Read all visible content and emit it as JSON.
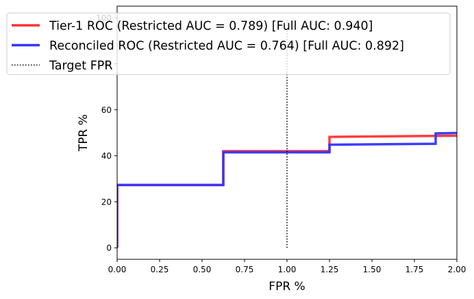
{
  "chart_data": {
    "type": "line",
    "xlabel": "FPR %",
    "ylabel": "TPR %",
    "xlim": [
      0,
      2
    ],
    "ylim": [
      -5,
      105
    ],
    "xticks": [
      "0.00",
      "0.25",
      "0.50",
      "0.75",
      "1.00",
      "1.25",
      "1.50",
      "1.75",
      "2.00"
    ],
    "yticks": [
      "0",
      "20",
      "40",
      "60",
      "80",
      "100"
    ],
    "grid": false,
    "legend_position": "top",
    "series": [
      {
        "name": "Tier-1 ROC (Restricted AUC = 0.789) [Full AUC: 0.940]",
        "color": "#ff3333",
        "x": [
          0,
          0,
          0.625,
          0.625,
          1.25,
          1.25,
          2.0
        ],
        "y": [
          0,
          27.3,
          27.3,
          42.0,
          42.0,
          48.2,
          48.7
        ]
      },
      {
        "name": "Reconciled ROC (Restricted AUC = 0.764) [Full AUC: 0.892]",
        "color": "#3333ff",
        "x": [
          0,
          0,
          0.625,
          0.625,
          1.25,
          1.25,
          1.875,
          1.875,
          2.0
        ],
        "y": [
          0,
          27.3,
          27.3,
          41.5,
          41.5,
          44.8,
          45.2,
          49.7,
          49.9
        ]
      }
    ],
    "reference_line": {
      "name": "Target FPR",
      "x": 1.0,
      "y_range": [
        0,
        100
      ],
      "style": "dotted",
      "color": "#000000"
    }
  }
}
